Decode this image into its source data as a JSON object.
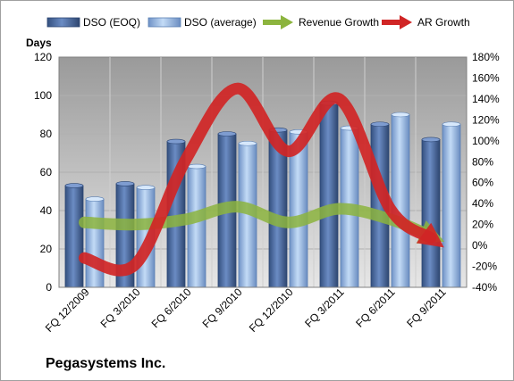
{
  "chart_data": {
    "type": "bar",
    "left_axis_title": "Days",
    "categories": [
      "FQ 12/2009",
      "FQ 3/2010",
      "FQ 6/2010",
      "FQ 9/2010",
      "FQ 12/2010",
      "FQ 3/2011",
      "FQ 6/2011",
      "FQ 9/2011"
    ],
    "bar_series": [
      {
        "name": "DSO (EOQ)",
        "color": "#4f6fa5",
        "values": [
          53,
          54,
          76,
          80,
          82,
          96,
          85,
          77
        ]
      },
      {
        "name": "DSO (average)",
        "color": "#9dbde8",
        "values": [
          46,
          52,
          63,
          75,
          81,
          83,
          90,
          85
        ]
      }
    ],
    "line_series": [
      {
        "name": "Revenue Growth",
        "color": "#8cb43e",
        "axis": "right",
        "values": [
          22,
          20,
          25,
          37,
          22,
          35,
          25,
          5
        ]
      },
      {
        "name": "AR Growth",
        "color": "#d02525",
        "axis": "right",
        "values": [
          -12,
          -18,
          83,
          150,
          90,
          140,
          35,
          0
        ]
      }
    ],
    "left_axis": {
      "min": 0,
      "max": 120,
      "ticks": [
        0,
        20,
        40,
        60,
        80,
        100,
        120
      ]
    },
    "right_axis": {
      "min": -40,
      "max": 180,
      "ticks": [
        "-40%",
        "-20%",
        "0%",
        "20%",
        "40%",
        "60%",
        "80%",
        "100%",
        "120%",
        "140%",
        "160%",
        "180%"
      ]
    },
    "grid": true,
    "legend_position": "top"
  },
  "footer": {
    "company": "Pegasystems Inc."
  }
}
